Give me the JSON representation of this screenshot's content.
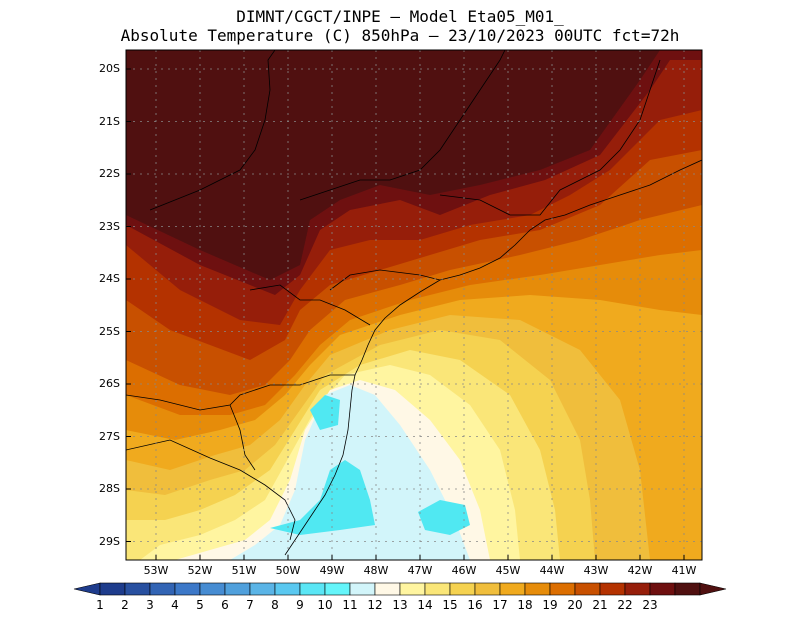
{
  "header": {
    "line1": "DIMNT/CGCT/INPE –  Model Eta05_M01_",
    "line2": "Absolute Temperature (C) 850hPa –  23/10/2023 00UTC fct=72h"
  },
  "map": {
    "lat_labels": [
      "20S",
      "21S",
      "22S",
      "23S",
      "24S",
      "25S",
      "26S",
      "27S",
      "28S",
      "29S"
    ],
    "lon_labels": [
      "53W",
      "52W",
      "51W",
      "50W",
      "49W",
      "48W",
      "47W",
      "46W",
      "45W",
      "44W",
      "43W",
      "42W",
      "41W"
    ]
  },
  "colorbar": {
    "labels": [
      "1",
      "2",
      "3",
      "4",
      "5",
      "6",
      "7",
      "8",
      "9",
      "10",
      "11",
      "12",
      "13",
      "14",
      "15",
      "16",
      "17",
      "18",
      "19",
      "20",
      "21",
      "22",
      "23"
    ],
    "colors": [
      "#1e3c8c",
      "#2850a0",
      "#3264b4",
      "#3c78c8",
      "#468cd2",
      "#50a0dc",
      "#5ab4e6",
      "#5ac8f0",
      "#5ae6f5",
      "#64f5fa",
      "#d2f5fa",
      "#fff8e6",
      "#fff5a0",
      "#fae678",
      "#f5d250",
      "#f0be3c",
      "#f0aa1e",
      "#e68c0a",
      "#dc6e00",
      "#c85000",
      "#b43200",
      "#961e0a",
      "#6e0f0f",
      "#501010"
    ],
    "end_low": "#1e3c8c",
    "end_high": "#501010"
  },
  "field_colors": {
    "c10": "#50e8f2",
    "c11": "#d2f5fa",
    "c12": "#fff8e6",
    "c13": "#fff5a0",
    "c14": "#fae678",
    "c15": "#f5d250",
    "c16": "#f0be3c",
    "c17": "#f0aa1e",
    "c18": "#e68c0a",
    "c19": "#dc6e00",
    "c20": "#c85000",
    "c21": "#b43200",
    "c22": "#961e0a",
    "c23": "#6e1010",
    "c24": "#501010"
  }
}
